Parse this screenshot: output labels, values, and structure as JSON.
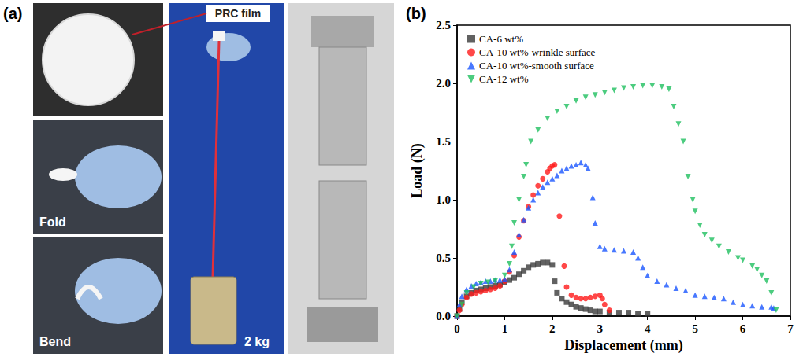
{
  "photo_panel": {
    "letter": "(a)",
    "labels": {
      "film": "PRC film",
      "fold": "Fold",
      "bend": "Bend",
      "weight": "2 kg"
    }
  },
  "chart_data": {
    "type": "scatter",
    "panel_label": "(b)",
    "x_label": "Displacement (mm)",
    "y_label": "Load (N)",
    "xlim": [
      0,
      7
    ],
    "xticks": [
      0,
      1,
      2,
      3,
      4,
      5,
      6,
      7
    ],
    "ylim": [
      0,
      2.5
    ],
    "yticks": [
      {
        "value": 0,
        "label": "0.0"
      },
      {
        "value": 0.5,
        "label": "0.5"
      },
      {
        "value": 1,
        "label": "1.0"
      },
      {
        "value": 1.5,
        "label": "1.5"
      },
      {
        "value": 2,
        "label": "2.0"
      },
      {
        "value": 2.5,
        "label": "2.5"
      }
    ],
    "grid": false,
    "legend": "upper left",
    "series": [
      {
        "name": "CA-6 wt%",
        "color": "#3a3a3a",
        "marker": "square",
        "x": [
          0,
          0.05,
          0.1,
          0.2,
          0.3,
          0.4,
          0.5,
          0.6,
          0.7,
          0.8,
          0.9,
          1.0,
          1.1,
          1.2,
          1.3,
          1.4,
          1.5,
          1.6,
          1.7,
          1.8,
          1.9,
          2.0,
          2.05,
          2.1,
          2.2,
          2.3,
          2.4,
          2.5,
          2.6,
          2.7,
          2.8,
          2.9,
          3.0,
          3.2,
          3.4,
          3.6,
          3.8,
          4.0
        ],
        "values": [
          0,
          0.06,
          0.12,
          0.17,
          0.2,
          0.22,
          0.23,
          0.24,
          0.25,
          0.26,
          0.27,
          0.29,
          0.31,
          0.33,
          0.36,
          0.39,
          0.42,
          0.44,
          0.45,
          0.46,
          0.46,
          0.44,
          0.3,
          0.2,
          0.15,
          0.12,
          0.1,
          0.08,
          0.07,
          0.06,
          0.05,
          0.04,
          0.04,
          0.03,
          0.03,
          0.03,
          0.02,
          0.02
        ]
      },
      {
        "name": "CA-10 wt%-wrinkle surface",
        "color": "#ff1a1a",
        "marker": "circle",
        "x": [
          0,
          0.05,
          0.1,
          0.2,
          0.3,
          0.4,
          0.5,
          0.6,
          0.7,
          0.8,
          0.9,
          1.0,
          1.1,
          1.2,
          1.3,
          1.4,
          1.5,
          1.6,
          1.7,
          1.8,
          1.9,
          1.95,
          2.0,
          2.05,
          2.15,
          2.25,
          2.3,
          2.4,
          2.5,
          2.6,
          2.7,
          2.8,
          2.9,
          3.0,
          3.05,
          3.1,
          3.2
        ],
        "values": [
          0,
          0.05,
          0.1,
          0.16,
          0.19,
          0.2,
          0.21,
          0.22,
          0.23,
          0.24,
          0.26,
          0.3,
          0.38,
          0.52,
          0.68,
          0.82,
          0.94,
          1.04,
          1.12,
          1.18,
          1.24,
          1.27,
          1.29,
          1.3,
          0.86,
          0.43,
          0.25,
          0.18,
          0.16,
          0.15,
          0.15,
          0.16,
          0.17,
          0.18,
          0.15,
          0.1,
          0.05
        ]
      },
      {
        "name": "CA-10 wt%-smooth surface",
        "color": "#1a56ff",
        "marker": "triangle",
        "x": [
          0,
          0.05,
          0.1,
          0.2,
          0.3,
          0.4,
          0.5,
          0.6,
          0.7,
          0.8,
          0.9,
          1.0,
          1.1,
          1.2,
          1.3,
          1.4,
          1.5,
          1.6,
          1.7,
          1.8,
          1.9,
          2.0,
          2.1,
          2.2,
          2.3,
          2.4,
          2.5,
          2.6,
          2.7,
          2.75,
          2.85,
          2.9,
          3.0,
          3.1,
          3.3,
          3.5,
          3.7,
          3.8,
          3.9,
          4.0,
          4.2,
          4.4,
          4.6,
          4.8,
          5.0,
          5.2,
          5.4,
          5.6,
          5.8,
          6.0,
          6.2,
          6.4,
          6.6,
          6.65
        ],
        "values": [
          0,
          0.1,
          0.17,
          0.23,
          0.26,
          0.28,
          0.29,
          0.3,
          0.3,
          0.31,
          0.31,
          0.32,
          0.4,
          0.55,
          0.7,
          0.83,
          0.93,
          1.0,
          1.06,
          1.11,
          1.15,
          1.18,
          1.21,
          1.25,
          1.27,
          1.29,
          1.3,
          1.32,
          1.3,
          1.27,
          1.02,
          0.8,
          0.6,
          0.58,
          0.57,
          0.56,
          0.55,
          0.5,
          0.42,
          0.35,
          0.3,
          0.27,
          0.24,
          0.22,
          0.18,
          0.17,
          0.16,
          0.15,
          0.12,
          0.1,
          0.09,
          0.08,
          0.08,
          0.07
        ]
      },
      {
        "name": "CA-12 wt%",
        "color": "#1fbf5f",
        "marker": "triangle-down",
        "x": [
          0,
          0.1,
          0.2,
          0.35,
          0.5,
          0.65,
          0.8,
          1.0,
          1.1,
          1.15,
          1.2,
          1.3,
          1.4,
          1.45,
          1.55,
          1.7,
          1.9,
          2.1,
          2.3,
          2.5,
          2.7,
          2.9,
          3.1,
          3.3,
          3.5,
          3.7,
          3.9,
          4.1,
          4.3,
          4.45,
          4.55,
          4.65,
          4.75,
          4.85,
          4.95,
          5.0,
          5.1,
          5.2,
          5.35,
          5.5,
          5.7,
          5.9,
          6.0,
          6.2,
          6.3,
          6.4,
          6.5,
          6.6,
          6.7
        ],
        "values": [
          0,
          0.1,
          0.2,
          0.25,
          0.28,
          0.29,
          0.3,
          0.35,
          0.45,
          0.6,
          0.8,
          1.0,
          1.2,
          1.3,
          1.5,
          1.6,
          1.7,
          1.76,
          1.8,
          1.85,
          1.88,
          1.9,
          1.92,
          1.94,
          1.96,
          1.97,
          1.98,
          1.98,
          1.97,
          1.95,
          1.8,
          1.65,
          1.5,
          1.2,
          1.0,
          0.9,
          0.78,
          0.7,
          0.65,
          0.6,
          0.55,
          0.5,
          0.48,
          0.43,
          0.4,
          0.35,
          0.3,
          0.2,
          0.05
        ]
      }
    ]
  }
}
